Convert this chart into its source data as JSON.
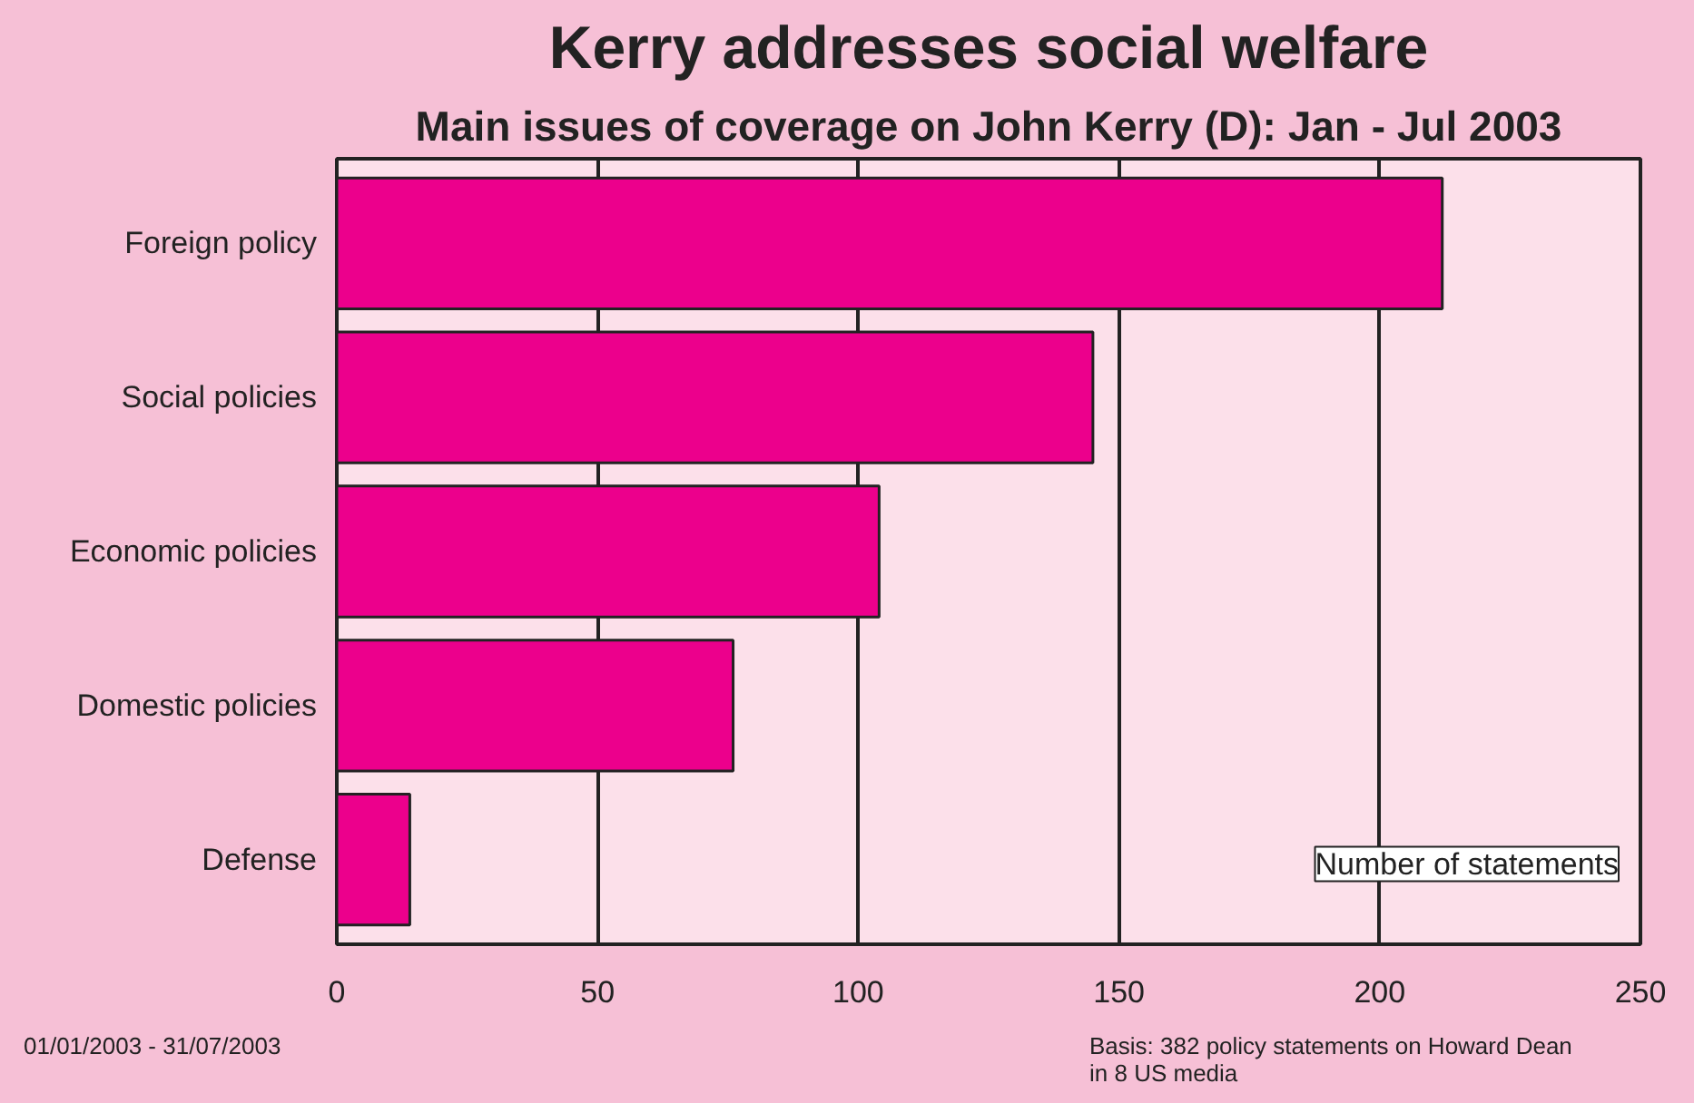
{
  "chart_data": {
    "type": "bar",
    "orientation": "horizontal",
    "title": "Kerry addresses social welfare",
    "subtitle": "Main issues of coverage on John Kerry (D): Jan - Jul 2003",
    "xlabel": "Number of statements",
    "categories": [
      "Foreign policy",
      "Social policies",
      "Economic policies",
      "Domestic policies",
      "Defense"
    ],
    "values": [
      212,
      145,
      104,
      76,
      14
    ],
    "color": "#ec008c",
    "xlim": [
      0,
      250
    ],
    "xticks": [
      0,
      50,
      100,
      150,
      200,
      250
    ],
    "grid": "x",
    "annotations": [
      "01/01/2003 - 31/07/2003",
      "Basis: 382 policy statements on Howard Dean\nin 8 US media"
    ]
  }
}
